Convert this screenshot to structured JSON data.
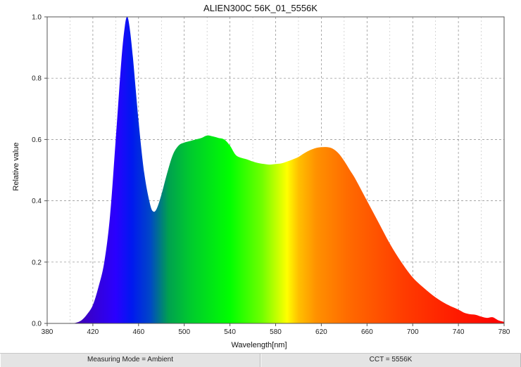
{
  "chart_data": {
    "type": "area",
    "title": "ALIEN300C 56K_01_5556K",
    "xlabel": "Wavelength[nm]",
    "ylabel": "Relative value",
    "xlim": [
      380,
      780
    ],
    "ylim": [
      0,
      1.0
    ],
    "x_ticks": [
      380,
      420,
      460,
      500,
      540,
      580,
      620,
      660,
      700,
      740,
      780
    ],
    "x_tick_labels": [
      "380",
      "420",
      "460",
      "500",
      "540",
      "580",
      "620",
      "660",
      "700",
      "740",
      "780"
    ],
    "y_ticks": [
      0,
      0.2,
      0.4,
      0.6,
      0.8,
      1.0
    ],
    "y_tick_labels": [
      "0.0",
      "0.2",
      "0.4",
      "0.6",
      "0.8",
      "1.0"
    ],
    "grid": true,
    "fill": "visible-spectrum gradient",
    "x": [
      400,
      405,
      410,
      415,
      420,
      425,
      430,
      435,
      440,
      445,
      448,
      450,
      452,
      455,
      460,
      465,
      470,
      473,
      476,
      480,
      485,
      490,
      495,
      500,
      505,
      510,
      515,
      520,
      525,
      530,
      535,
      540,
      545,
      550,
      555,
      560,
      565,
      570,
      575,
      580,
      585,
      590,
      595,
      600,
      605,
      610,
      615,
      620,
      625,
      630,
      635,
      640,
      645,
      650,
      660,
      670,
      680,
      690,
      700,
      710,
      720,
      730,
      740,
      745,
      750,
      755,
      760,
      765,
      770,
      775,
      780
    ],
    "y": [
      0.0,
      0.002,
      0.01,
      0.03,
      0.06,
      0.12,
      0.2,
      0.35,
      0.6,
      0.86,
      0.97,
      1.0,
      0.97,
      0.87,
      0.66,
      0.49,
      0.39,
      0.365,
      0.375,
      0.42,
      0.49,
      0.55,
      0.58,
      0.59,
      0.595,
      0.6,
      0.605,
      0.613,
      0.61,
      0.605,
      0.6,
      0.58,
      0.55,
      0.54,
      0.535,
      0.528,
      0.523,
      0.52,
      0.518,
      0.52,
      0.522,
      0.528,
      0.535,
      0.543,
      0.555,
      0.565,
      0.572,
      0.575,
      0.575,
      0.57,
      0.555,
      0.53,
      0.5,
      0.47,
      0.4,
      0.33,
      0.26,
      0.2,
      0.15,
      0.115,
      0.085,
      0.062,
      0.045,
      0.035,
      0.03,
      0.028,
      0.022,
      0.018,
      0.02,
      0.01,
      0.005
    ]
  },
  "status_bar": {
    "measuring_mode": "Measuring Mode = Ambient",
    "cct": "CCT = 5556K"
  }
}
